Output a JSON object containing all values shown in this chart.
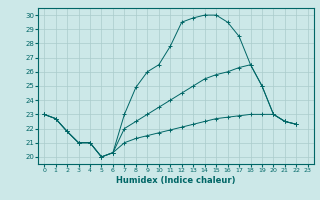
{
  "xlabel": "Humidex (Indice chaleur)",
  "background_color": "#cce8e8",
  "grid_color": "#aacccc",
  "line_color": "#006666",
  "xlim": [
    -0.5,
    23.5
  ],
  "ylim": [
    19.5,
    30.5
  ],
  "yticks": [
    20,
    21,
    22,
    23,
    24,
    25,
    26,
    27,
    28,
    29,
    30
  ],
  "xticks": [
    0,
    1,
    2,
    3,
    4,
    5,
    6,
    7,
    8,
    9,
    10,
    11,
    12,
    13,
    14,
    15,
    16,
    17,
    18,
    19,
    20,
    21,
    22,
    23
  ],
  "line1_x": [
    0,
    1,
    2,
    3,
    4,
    5,
    6,
    7,
    8,
    9,
    10,
    11,
    12,
    13,
    14,
    15,
    16,
    17,
    18,
    19,
    20,
    21,
    22
  ],
  "line1_y": [
    23.0,
    22.7,
    21.8,
    21.0,
    21.0,
    20.0,
    20.3,
    23.0,
    24.9,
    26.0,
    26.5,
    27.8,
    29.5,
    29.8,
    30.0,
    30.0,
    29.5,
    28.5,
    26.5,
    25.0,
    23.0,
    22.5,
    22.3
  ],
  "line2_x": [
    0,
    1,
    2,
    3,
    4,
    5,
    6,
    7,
    8,
    9,
    10,
    11,
    12,
    13,
    14,
    15,
    16,
    17,
    18,
    19,
    20,
    21,
    22
  ],
  "line2_y": [
    23.0,
    22.7,
    21.8,
    21.0,
    21.0,
    20.0,
    20.3,
    22.0,
    22.5,
    23.0,
    23.5,
    24.0,
    24.5,
    25.0,
    25.5,
    25.8,
    26.0,
    26.3,
    26.5,
    25.0,
    23.0,
    22.5,
    22.3
  ],
  "line3_x": [
    0,
    1,
    2,
    3,
    4,
    5,
    6,
    7,
    8,
    9,
    10,
    11,
    12,
    13,
    14,
    15,
    16,
    17,
    18,
    19,
    20,
    21,
    22
  ],
  "line3_y": [
    23.0,
    22.7,
    21.8,
    21.0,
    21.0,
    20.0,
    20.3,
    21.0,
    21.3,
    21.5,
    21.7,
    21.9,
    22.1,
    22.3,
    22.5,
    22.7,
    22.8,
    22.9,
    23.0,
    23.0,
    23.0,
    22.5,
    22.3
  ]
}
